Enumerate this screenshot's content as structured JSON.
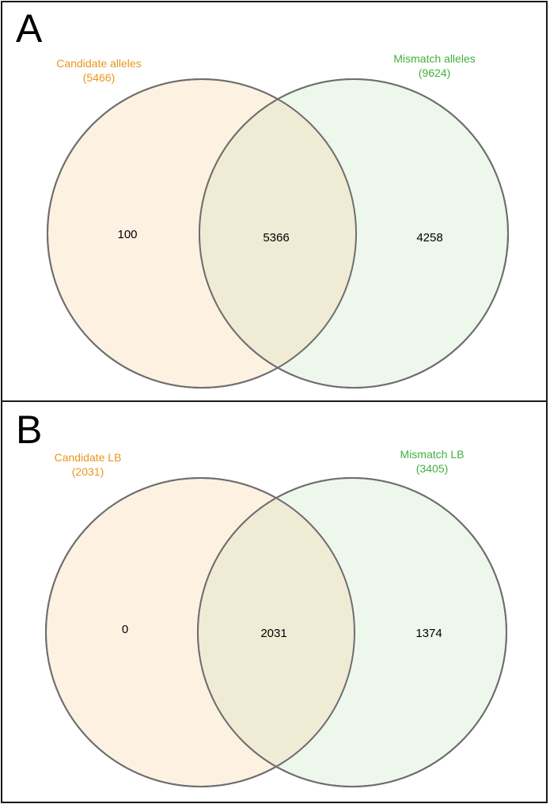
{
  "colors": {
    "left_fill": "#fdf1e2",
    "right_fill": "#eef7ec",
    "overlap_fill": "#efebd5",
    "circle_stroke": "#6e6e6e",
    "left_label_color": "#e8961e",
    "right_label_color": "#3fb03f"
  },
  "panels": [
    {
      "panel_label": "A",
      "left_set": {
        "name": "Candidate alleles",
        "total": "(5466)"
      },
      "right_set": {
        "name": "Mismatch alleles",
        "total": "(9624)"
      },
      "left_only": "100",
      "overlap": "5366",
      "right_only": "4258"
    },
    {
      "panel_label": "B",
      "left_set": {
        "name": "Candidate LB",
        "total": "(2031)"
      },
      "right_set": {
        "name": "Mismatch LB",
        "total": "(3405)"
      },
      "left_only": "0",
      "overlap": "2031",
      "right_only": "1374"
    }
  ]
}
